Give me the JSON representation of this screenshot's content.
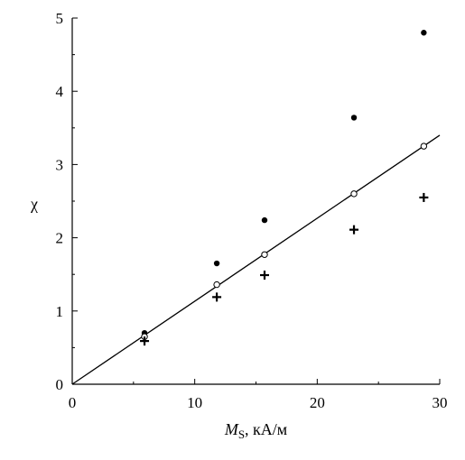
{
  "chart_data": {
    "type": "scatter",
    "xlabel_symbol": "M",
    "xlabel_subscript": "S",
    "xlabel_unit": ", кА/м",
    "ylabel": "χ",
    "xlim": [
      0,
      30
    ],
    "ylim": [
      0,
      5
    ],
    "xticks": [
      "0",
      "10",
      "20",
      "30"
    ],
    "yticks": [
      "0",
      "1",
      "2",
      "3",
      "4",
      "5"
    ],
    "grid": false,
    "series": [
      {
        "marker": "filled-circle",
        "x": [
          5.9,
          11.8,
          15.7,
          23.0,
          28.7
        ],
        "y": [
          0.7,
          1.65,
          2.24,
          3.64,
          4.8
        ]
      },
      {
        "marker": "open-circle",
        "x": [
          5.9,
          11.8,
          15.7,
          23.0,
          28.7
        ],
        "y": [
          0.65,
          1.36,
          1.77,
          2.6,
          3.25
        ]
      },
      {
        "marker": "plus",
        "x": [
          5.9,
          11.8,
          15.7,
          23.0,
          28.7
        ],
        "y": [
          0.59,
          1.19,
          1.49,
          2.11,
          2.55
        ]
      }
    ],
    "fit_line": {
      "x": [
        0,
        30
      ],
      "y": [
        0,
        3.4
      ]
    }
  }
}
